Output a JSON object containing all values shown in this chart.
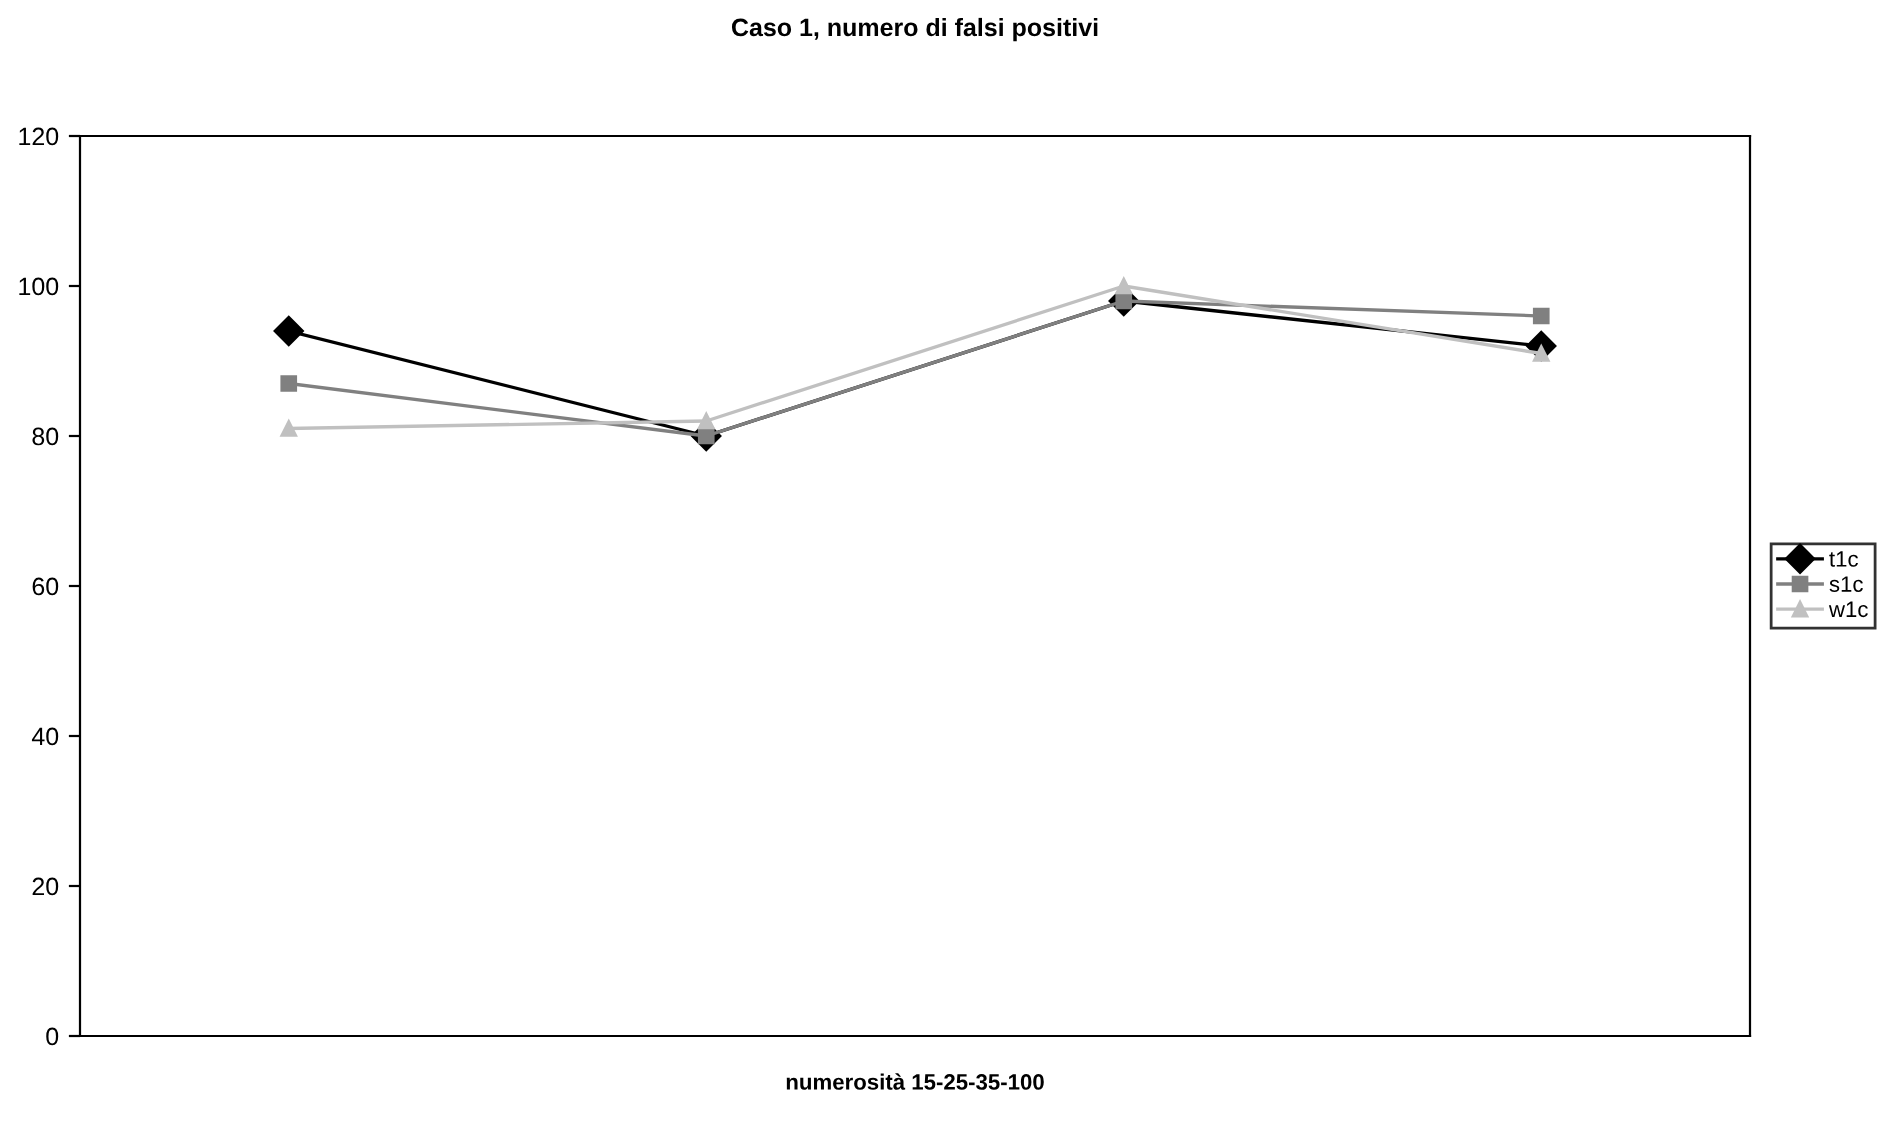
{
  "chart_data": {
    "type": "line",
    "title": "Caso 1, numero di falsi positivi",
    "xlabel": "numerosità 15-25-35-100",
    "categories": [
      null,
      null,
      null,
      null
    ],
    "series": [
      {
        "name": "t1c",
        "color": "#000000",
        "marker": "diamond",
        "values": [
          94,
          80,
          98,
          92
        ]
      },
      {
        "name": "s1c",
        "color": "#808080",
        "marker": "square",
        "values": [
          87,
          80,
          98,
          96
        ]
      },
      {
        "name": "w1c",
        "color": "#c0c0c0",
        "marker": "triangle",
        "values": [
          81,
          82,
          100,
          91
        ]
      }
    ],
    "ylim": [
      0,
      120
    ],
    "yticks": [
      0,
      20,
      40,
      60,
      80,
      100,
      120
    ],
    "grid": false,
    "legend": "right",
    "line_style": "solid"
  }
}
